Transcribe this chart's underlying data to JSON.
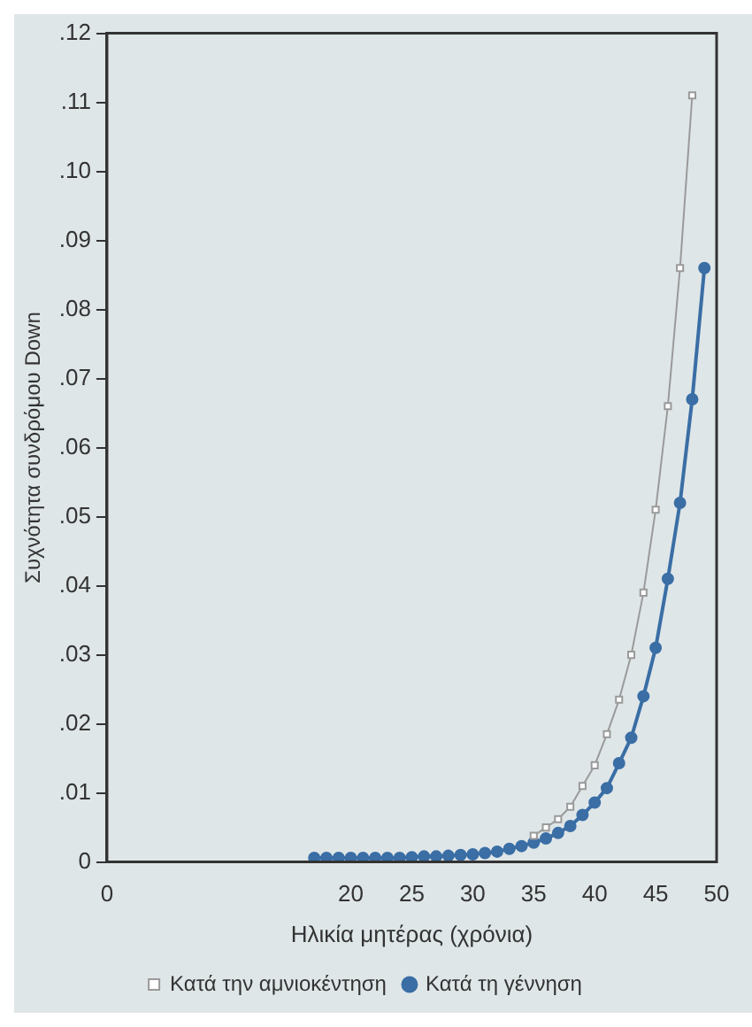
{
  "chart_data": {
    "type": "line",
    "xlabel": "Ηλικία μητέρας (χρόνια)",
    "ylabel": "Συχνότητα συνδρόμου Down",
    "xlim": [
      0,
      50
    ],
    "xticks": [
      0,
      20,
      25,
      30,
      35,
      40,
      45,
      50
    ],
    "ylim": [
      0,
      0.12
    ],
    "yticks": [
      0,
      {
        "value": 0.01,
        "label": ".01"
      },
      {
        "value": 0.02,
        "label": ".02"
      },
      {
        "value": 0.03,
        "label": ".03"
      },
      {
        "value": 0.04,
        "label": ".04"
      },
      {
        "value": 0.05,
        "label": ".05"
      },
      {
        "value": 0.06,
        "label": ".06"
      },
      {
        "value": 0.07,
        "label": ".07"
      },
      {
        "value": 0.08,
        "label": ".08"
      },
      {
        "value": 0.09,
        "label": ".09"
      },
      {
        "value": 0.1,
        "label": ".10"
      },
      {
        "value": 0.11,
        "label": ".11"
      },
      {
        "value": 0.12,
        "label": ".12"
      }
    ],
    "grid": false,
    "legend": "bottom",
    "series": [
      {
        "name": "Κατά την αμνιοκέντηση",
        "color": "#9a9a9a",
        "marker": "square",
        "x": [
          35,
          36,
          37,
          38,
          39,
          40,
          41,
          42,
          43,
          44,
          45,
          46,
          47,
          48
        ],
        "values": [
          0.0038,
          0.005,
          0.0062,
          0.008,
          0.011,
          0.014,
          0.0185,
          0.0235,
          0.03,
          0.039,
          0.051,
          0.066,
          0.086,
          0.111
        ]
      },
      {
        "name": "Κατά τη γέννηση",
        "color": "#3a6ea5",
        "marker": "circle",
        "x": [
          17,
          18,
          19,
          20,
          21,
          22,
          23,
          24,
          25,
          26,
          27,
          28,
          29,
          30,
          31,
          32,
          33,
          34,
          35,
          36,
          37,
          38,
          39,
          40,
          41,
          42,
          43,
          44,
          45,
          46,
          47,
          48,
          49
        ],
        "values": [
          0.0006,
          0.0006,
          0.0006,
          0.0006,
          0.0006,
          0.0006,
          0.0006,
          0.0006,
          0.0007,
          0.0008,
          0.0008,
          0.0009,
          0.001,
          0.0011,
          0.0013,
          0.0015,
          0.0019,
          0.0023,
          0.0028,
          0.0034,
          0.0042,
          0.0052,
          0.0068,
          0.0086,
          0.0107,
          0.0143,
          0.018,
          0.024,
          0.031,
          0.041,
          0.052,
          0.067,
          0.086
        ]
      }
    ]
  }
}
